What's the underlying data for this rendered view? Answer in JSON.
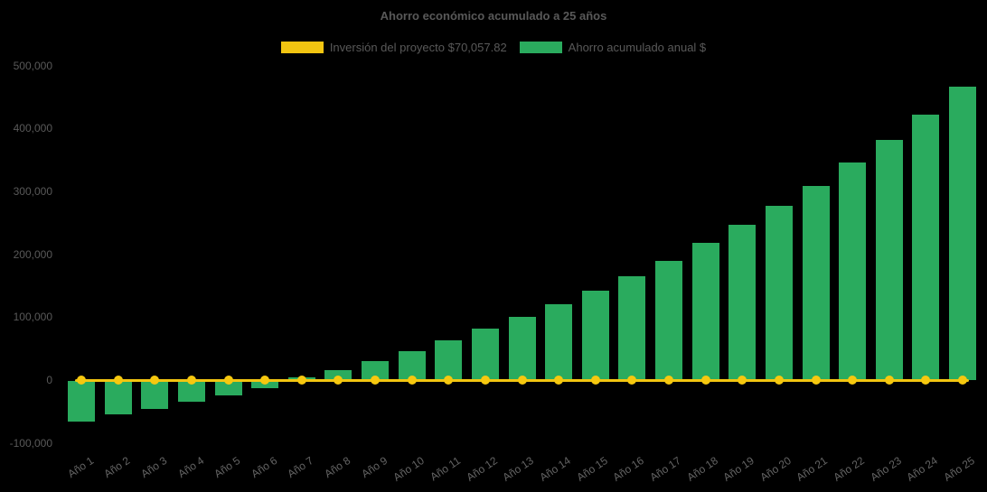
{
  "title": "Ahorro económico acumulado a 25 años",
  "colors": {
    "background": "#000000",
    "bar_green": "#2aab5e",
    "line_yellow": "#f2c511",
    "marker_yellow": "#f6c80f",
    "title_text": "#595959",
    "axis_text": "#646464"
  },
  "legend": {
    "items": [
      {
        "label": "Inversión del proyecto $70,057.82",
        "color": "#f2c511",
        "series": "line"
      },
      {
        "label": "Ahorro acumulado anual $",
        "color": "#2aab5e",
        "series": "bar"
      }
    ]
  },
  "chart_data": {
    "type": "bar",
    "title": "Ahorro económico acumulado a 25 años",
    "categories": [
      "Año 1",
      "Año 2",
      "Año 3",
      "Año 4",
      "Año 5",
      "Año 6",
      "Año 7",
      "Año 8",
      "Año 9",
      "Año 10",
      "Año 11",
      "Año 12",
      "Año 13",
      "Año 14",
      "Año 15",
      "Año 16",
      "Año 17",
      "Año 18",
      "Año 19",
      "Año 20",
      "Año 21",
      "Año 22",
      "Año 23",
      "Año 24",
      "Año 25"
    ],
    "series": [
      {
        "name": "Ahorro acumulado anual $",
        "type": "bar",
        "color": "#2aab5e",
        "values": [
          -64000,
          -52500,
          -44500,
          -33000,
          -22500,
          -11500,
          4500,
          16000,
          29500,
          46000,
          62500,
          81500,
          100500,
          120000,
          141500,
          165000,
          190000,
          218000,
          246500,
          277000,
          308000,
          346000,
          382000,
          421500,
          466500
        ]
      },
      {
        "name": "Inversión del proyecto $70,057.82",
        "type": "line",
        "color": "#f2c511",
        "values": [
          0,
          0,
          0,
          0,
          0,
          0,
          0,
          0,
          0,
          0,
          0,
          0,
          0,
          0,
          0,
          0,
          0,
          0,
          0,
          0,
          0,
          0,
          0,
          0,
          0
        ]
      }
    ],
    "xlabel": "",
    "ylabel": "",
    "ylim": [
      -100000,
      500000
    ],
    "yticks": [
      500000,
      400000,
      300000,
      200000,
      100000,
      0,
      -100000
    ],
    "grid": false,
    "legend_position": "top"
  }
}
